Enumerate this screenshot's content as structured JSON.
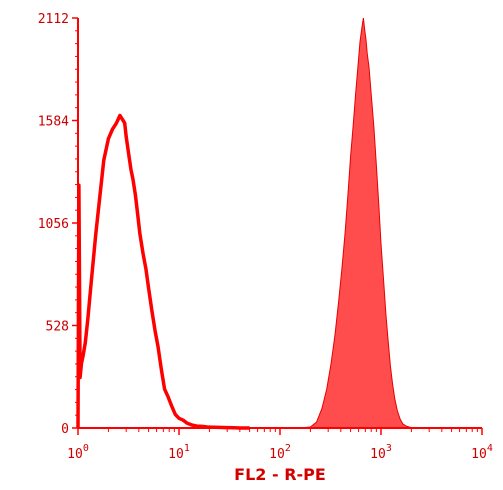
{
  "chart_data": {
    "type": "area",
    "title": "",
    "xlabel": "FL2 - R-PE",
    "ylabel": "",
    "x_scale": "log",
    "xlim": [
      1,
      10000
    ],
    "ylim": [
      0,
      2112
    ],
    "y_ticks": [
      0,
      528,
      1056,
      1584,
      2112
    ],
    "y_tick_labels": [
      "0",
      "528",
      "1056",
      "1584",
      "2112"
    ],
    "x_ticks": [
      1,
      10,
      100,
      1000,
      10000
    ],
    "x_tick_labels": [
      {
        "base": "10",
        "exp": "0"
      },
      {
        "base": "10",
        "exp": "1"
      },
      {
        "base": "10",
        "exp": "2"
      },
      {
        "base": "10",
        "exp": "3"
      },
      {
        "base": "10",
        "exp": "4"
      }
    ],
    "grid": false,
    "legend": "none",
    "colors": {
      "axis": "#ff0000",
      "text": "#cc0000",
      "outline_series": "#ff0000",
      "filled_series": "#ff4d4d"
    },
    "series": [
      {
        "style": "outline",
        "x": [
          1.0,
          1.02,
          1.05,
          1.08,
          1.12,
          1.18,
          1.25,
          1.35,
          1.5,
          1.65,
          1.8,
          2.0,
          2.2,
          2.4,
          2.6,
          2.75,
          2.9,
          3.0,
          3.1,
          3.2,
          3.35,
          3.5,
          3.7,
          3.9,
          4.1,
          4.4,
          4.7,
          5.0,
          5.4,
          5.8,
          6.2,
          6.7,
          7.2,
          7.8,
          8.5,
          9.2,
          10.0,
          11.0,
          12.0,
          13.5,
          15.0,
          17.0,
          19.0,
          22.0,
          25.0,
          30.0,
          35.0,
          40.0,
          50.0
        ],
        "values": [
          0,
          1250,
          260,
          330,
          370,
          440,
          560,
          750,
          1000,
          1200,
          1380,
          1490,
          1540,
          1570,
          1610,
          1590,
          1570,
          1500,
          1450,
          1400,
          1330,
          1280,
          1200,
          1100,
          1000,
          900,
          820,
          720,
          600,
          500,
          420,
          300,
          200,
          160,
          110,
          70,
          50,
          40,
          25,
          15,
          10,
          8,
          5,
          4,
          3,
          2,
          1,
          0,
          0
        ]
      },
      {
        "style": "filled",
        "x": [
          100,
          150,
          200,
          230,
          260,
          290,
          320,
          350,
          380,
          410,
          440,
          470,
          500,
          530,
          560,
          590,
          620,
          650,
          670,
          690,
          710,
          730,
          760,
          800,
          850,
          900,
          950,
          1000,
          1060,
          1120,
          1180,
          1240,
          1300,
          1370,
          1450,
          1550,
          1650,
          1800,
          2000,
          2200
        ],
        "values": [
          0,
          0,
          5,
          30,
          100,
          200,
          330,
          480,
          650,
          820,
          1000,
          1200,
          1400,
          1560,
          1720,
          1860,
          1990,
          2070,
          2112,
          2050,
          2000,
          1930,
          1860,
          1720,
          1550,
          1350,
          1150,
          950,
          760,
          580,
          440,
          320,
          230,
          150,
          90,
          45,
          20,
          8,
          2,
          0
        ]
      }
    ]
  }
}
